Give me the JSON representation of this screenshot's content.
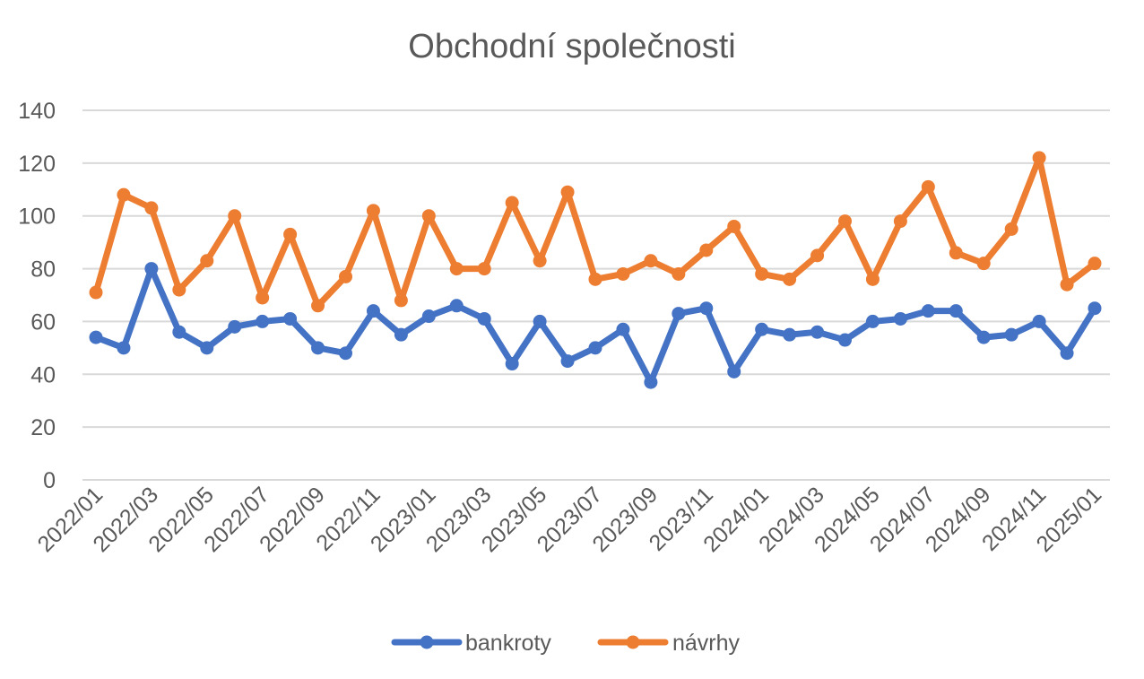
{
  "chart_data": {
    "type": "line",
    "title": "Obchodní společnosti",
    "xlabel": "",
    "ylabel": "",
    "ylim": [
      0,
      140
    ],
    "yticks": [
      0,
      20,
      40,
      60,
      80,
      100,
      120,
      140
    ],
    "grid": true,
    "legend_position": "bottom",
    "x": [
      "2022/01",
      "2022/02",
      "2022/03",
      "2022/04",
      "2022/05",
      "2022/06",
      "2022/07",
      "2022/08",
      "2022/09",
      "2022/10",
      "2022/11",
      "2022/12",
      "2023/01",
      "2023/02",
      "2023/03",
      "2023/04",
      "2023/05",
      "2023/06",
      "2023/07",
      "2023/08",
      "2023/09",
      "2023/10",
      "2023/11",
      "2023/12",
      "2024/01",
      "2024/02",
      "2024/03",
      "2024/04",
      "2024/05",
      "2024/06",
      "2024/07",
      "2024/08",
      "2024/09",
      "2024/10",
      "2024/11",
      "2024/12",
      "2025/01"
    ],
    "xtick_labels": [
      "2022/01",
      "2022/03",
      "2022/05",
      "2022/07",
      "2022/09",
      "2022/11",
      "2023/01",
      "2023/03",
      "2023/05",
      "2023/07",
      "2023/09",
      "2023/11",
      "2024/01",
      "2024/03",
      "2024/05",
      "2024/07",
      "2024/09",
      "2024/11",
      "2025/01"
    ],
    "series": [
      {
        "name": "bankroty",
        "color": "#4472C4",
        "values": [
          54,
          50,
          80,
          56,
          50,
          58,
          60,
          61,
          50,
          48,
          64,
          55,
          62,
          66,
          61,
          44,
          60,
          45,
          50,
          57,
          37,
          63,
          65,
          41,
          57,
          55,
          56,
          53,
          60,
          61,
          64,
          64,
          54,
          55,
          60,
          48,
          65
        ]
      },
      {
        "name": "návrhy",
        "color": "#ED7D31",
        "values": [
          71,
          108,
          103,
          72,
          83,
          100,
          69,
          93,
          66,
          77,
          102,
          68,
          100,
          80,
          80,
          105,
          83,
          109,
          76,
          78,
          83,
          78,
          87,
          96,
          78,
          76,
          85,
          98,
          76,
          98,
          111,
          86,
          82,
          95,
          122,
          74,
          82
        ]
      }
    ]
  }
}
